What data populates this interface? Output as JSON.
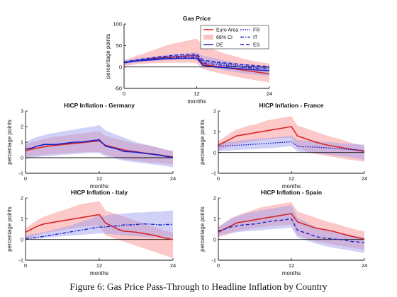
{
  "figure": {
    "caption": "Figure 6: Gas Price Pass-Through to Headline Inflation by Country"
  },
  "chart_data": [
    {
      "type": "line",
      "title": "Gas Price",
      "xlabel": "months",
      "ylabel": "percentage points",
      "xlim": [
        0,
        24
      ],
      "ylim": [
        -50,
        100
      ],
      "xticks": [
        "0",
        "12",
        "24"
      ],
      "yticks": [
        "-50",
        "0",
        "50",
        "100"
      ],
      "zero_line": true,
      "legend": {
        "placement": "top-right",
        "entries": [
          "Euro Area",
          "68% CI",
          "DE",
          "FR",
          "IT",
          "ES"
        ]
      },
      "x": [
        0,
        1,
        2,
        3,
        4,
        5,
        6,
        7,
        8,
        9,
        10,
        11,
        12,
        13,
        14,
        15,
        16,
        17,
        18,
        19,
        20,
        21,
        22,
        23,
        24
      ],
      "band_euro_area": {
        "name": "68% CI",
        "lower": [
          2,
          4,
          6,
          7,
          8,
          9,
          9,
          10,
          10,
          10,
          10,
          10,
          8,
          -4,
          -8,
          -12,
          -16,
          -18,
          -22,
          -24,
          -27,
          -29,
          -32,
          -34,
          -36
        ],
        "upper": [
          16,
          20,
          26,
          30,
          35,
          40,
          45,
          50,
          54,
          57,
          60,
          63,
          66,
          50,
          45,
          40,
          34,
          30,
          26,
          22,
          18,
          15,
          12,
          10,
          8
        ]
      },
      "band_country": {
        "lower": [
          5,
          8,
          10,
          12,
          13,
          14,
          15,
          16,
          17,
          17,
          18,
          18,
          17,
          5,
          0,
          -3,
          -6,
          -9,
          -11,
          -13,
          -15,
          -17,
          -18,
          -20,
          -22
        ],
        "upper": [
          15,
          18,
          20,
          22,
          23,
          24,
          26,
          28,
          29,
          30,
          31,
          32,
          33,
          26,
          23,
          20,
          17,
          14,
          11,
          8,
          6,
          4,
          2,
          1,
          0
        ]
      },
      "series": [
        {
          "name": "Euro Area",
          "color": "#d62728",
          "values": [
            10,
            12,
            14,
            16,
            18,
            20,
            21,
            22,
            23,
            24,
            25,
            26,
            26,
            8,
            4,
            2,
            0,
            -2,
            -4,
            -6,
            -8,
            -10,
            -12,
            -14,
            -16
          ]
        },
        {
          "name": "DE",
          "color": "#1a22c9",
          "values": [
            10,
            12,
            14,
            15,
            16,
            17,
            18,
            19,
            19,
            20,
            20,
            20,
            20,
            4,
            2,
            0,
            -1,
            -2,
            -3,
            -4,
            -5,
            -6,
            -7,
            -8,
            -9
          ]
        },
        {
          "name": "FR",
          "color": "#1a22c9",
          "values": [
            11,
            13,
            15,
            17,
            19,
            20,
            22,
            23,
            24,
            25,
            26,
            26,
            26,
            14,
            12,
            10,
            8,
            6,
            5,
            3,
            2,
            1,
            0,
            -1,
            -2
          ]
        },
        {
          "name": "IT",
          "color": "#1a22c9",
          "values": [
            10,
            12,
            14,
            16,
            17,
            18,
            19,
            20,
            21,
            22,
            22,
            22,
            22,
            10,
            8,
            6,
            4,
            3,
            2,
            0,
            -1,
            -2,
            -3,
            -4,
            -5
          ]
        },
        {
          "name": "ES",
          "color": "#1a22c9",
          "values": [
            11,
            14,
            16,
            18,
            20,
            22,
            24,
            25,
            27,
            28,
            29,
            30,
            30,
            16,
            14,
            12,
            10,
            9,
            8,
            6,
            5,
            4,
            3,
            2,
            1
          ]
        }
      ]
    },
    {
      "type": "line",
      "title": "HICP Inflation - Germany",
      "xlabel": "months",
      "ylabel": "percentage points",
      "xlim": [
        0,
        24
      ],
      "ylim": [
        -1,
        3
      ],
      "xticks": [
        "0",
        "12",
        "24"
      ],
      "yticks": [
        "-1",
        "0",
        "1",
        "2",
        "3"
      ],
      "zero_line": true,
      "x": [
        0,
        1,
        2,
        3,
        4,
        5,
        6,
        7,
        8,
        9,
        10,
        11,
        12,
        13,
        14,
        15,
        16,
        17,
        18,
        19,
        20,
        21,
        22,
        23,
        24
      ],
      "band_euro_area": {
        "lower": [
          0.05,
          0.1,
          0.15,
          0.2,
          0.22,
          0.25,
          0.27,
          0.3,
          0.32,
          0.34,
          0.35,
          0.36,
          0.37,
          0.2,
          0.1,
          0.0,
          -0.1,
          -0.15,
          -0.2,
          -0.25,
          -0.3,
          -0.33,
          -0.36,
          -0.4,
          -0.42
        ],
        "upper": [
          0.85,
          1.0,
          1.1,
          1.2,
          1.3,
          1.35,
          1.4,
          1.45,
          1.5,
          1.55,
          1.6,
          1.65,
          1.7,
          1.4,
          1.3,
          1.2,
          1.1,
          1.0,
          0.9,
          0.85,
          0.8,
          0.7,
          0.6,
          0.5,
          0.45
        ]
      },
      "band_country": {
        "lower": [
          -0.1,
          0.0,
          0.05,
          0.1,
          0.1,
          0.15,
          0.2,
          0.2,
          0.25,
          0.25,
          0.3,
          0.3,
          0.3,
          0.1,
          0.0,
          -0.1,
          -0.2,
          -0.25,
          -0.3,
          -0.35,
          -0.4,
          -0.45,
          -0.5,
          -0.55,
          -0.6
        ],
        "upper": [
          1.0,
          1.2,
          1.35,
          1.45,
          1.55,
          1.6,
          1.7,
          1.75,
          1.8,
          1.9,
          1.95,
          2.0,
          2.1,
          1.75,
          1.6,
          1.45,
          1.3,
          1.15,
          1.0,
          0.9,
          0.8,
          0.7,
          0.6,
          0.5,
          0.4
        ]
      },
      "series": [
        {
          "name": "Euro Area",
          "color": "#d62728",
          "values": [
            0.45,
            0.55,
            0.62,
            0.7,
            0.76,
            0.8,
            0.84,
            0.88,
            0.92,
            0.96,
            1.0,
            1.04,
            1.08,
            0.8,
            0.7,
            0.6,
            0.5,
            0.43,
            0.38,
            0.32,
            0.27,
            0.22,
            0.17,
            0.1,
            0.05
          ]
        },
        {
          "name": "DE",
          "color": "#1a22c9",
          "values": [
            0.55,
            0.62,
            0.75,
            0.85,
            0.85,
            0.85,
            0.9,
            0.95,
            1.0,
            1.0,
            1.05,
            1.1,
            1.15,
            0.75,
            0.65,
            0.55,
            0.4,
            0.38,
            0.35,
            0.3,
            0.25,
            0.2,
            0.15,
            0.08,
            0.0
          ]
        }
      ]
    },
    {
      "type": "line",
      "title": "HICP Inflation - France",
      "xlabel": "months",
      "ylabel": "percentage points",
      "xlim": [
        0,
        24
      ],
      "ylim": [
        -1,
        2
      ],
      "xticks": [
        "0",
        "12",
        "24"
      ],
      "yticks": [
        "-1",
        "0",
        "1",
        "2"
      ],
      "zero_line": true,
      "x": [
        0,
        1,
        2,
        3,
        4,
        5,
        6,
        7,
        8,
        9,
        10,
        11,
        12,
        13,
        14,
        15,
        16,
        17,
        18,
        19,
        20,
        21,
        22,
        23,
        24
      ],
      "band_euro_area": {
        "lower": [
          0.1,
          0.2,
          0.3,
          0.4,
          0.45,
          0.5,
          0.55,
          0.6,
          0.62,
          0.65,
          0.68,
          0.7,
          0.72,
          0.2,
          0.1,
          0.0,
          -0.08,
          -0.12,
          -0.18,
          -0.22,
          -0.28,
          -0.32,
          -0.36,
          -0.4,
          -0.45
        ],
        "upper": [
          0.55,
          0.75,
          0.95,
          1.1,
          1.2,
          1.3,
          1.35,
          1.45,
          1.55,
          1.6,
          1.65,
          1.7,
          1.75,
          1.3,
          1.2,
          1.1,
          1.0,
          0.9,
          0.8,
          0.72,
          0.65,
          0.55,
          0.45,
          0.38,
          0.3
        ]
      },
      "band_country": {
        "lower": [
          0.05,
          0.08,
          0.1,
          0.12,
          0.14,
          0.15,
          0.16,
          0.18,
          0.2,
          0.22,
          0.25,
          0.27,
          0.3,
          0.05,
          0.0,
          -0.02,
          -0.05,
          -0.08,
          -0.1,
          -0.14,
          -0.18,
          -0.2,
          -0.25,
          -0.3,
          -0.35
        ],
        "upper": [
          0.45,
          0.5,
          0.52,
          0.55,
          0.6,
          0.62,
          0.65,
          0.68,
          0.7,
          0.72,
          0.75,
          0.78,
          0.8,
          0.6,
          0.58,
          0.56,
          0.55,
          0.52,
          0.5,
          0.48,
          0.45,
          0.43,
          0.42,
          0.4,
          0.38
        ]
      },
      "series": [
        {
          "name": "Euro Area",
          "color": "#d62728",
          "values": [
            0.35,
            0.5,
            0.65,
            0.8,
            0.85,
            0.9,
            0.95,
            1.0,
            1.05,
            1.1,
            1.15,
            1.2,
            1.25,
            0.8,
            0.7,
            0.6,
            0.5,
            0.42,
            0.35,
            0.3,
            0.25,
            0.2,
            0.15,
            0.1,
            0.05
          ]
        },
        {
          "name": "FR",
          "color": "#1a22c9",
          "values": [
            0.3,
            0.32,
            0.33,
            0.35,
            0.36,
            0.38,
            0.4,
            0.42,
            0.44,
            0.46,
            0.48,
            0.5,
            0.52,
            0.3,
            0.28,
            0.27,
            0.26,
            0.24,
            0.22,
            0.2,
            0.18,
            0.16,
            0.14,
            0.12,
            0.1
          ]
        }
      ]
    },
    {
      "type": "line",
      "title": "HICP Inflation - Italy",
      "xlabel": "months",
      "ylabel": "percentage points",
      "xlim": [
        0,
        24
      ],
      "ylim": [
        -1,
        2
      ],
      "xticks": [
        "0",
        "12",
        "24"
      ],
      "yticks": [
        "-1",
        "0",
        "1",
        "2"
      ],
      "zero_line": true,
      "x": [
        0,
        1,
        2,
        3,
        4,
        5,
        6,
        7,
        8,
        9,
        10,
        11,
        12,
        13,
        14,
        15,
        16,
        17,
        18,
        19,
        20,
        21,
        22,
        23,
        24
      ],
      "band_euro_area": {
        "lower": [
          0.05,
          0.1,
          0.2,
          0.3,
          0.35,
          0.4,
          0.45,
          0.5,
          0.55,
          0.6,
          0.62,
          0.65,
          0.68,
          0.2,
          0.1,
          0.0,
          -0.1,
          -0.2,
          -0.3,
          -0.4,
          -0.5,
          -0.6,
          -0.7,
          -0.8,
          -0.9
        ],
        "upper": [
          0.55,
          0.75,
          0.95,
          1.1,
          1.2,
          1.3,
          1.4,
          1.5,
          1.6,
          1.7,
          1.75,
          1.8,
          1.85,
          1.4,
          1.3,
          1.2,
          1.1,
          1.0,
          0.9,
          0.8,
          0.7,
          0.6,
          0.5,
          0.4,
          0.35
        ]
      },
      "band_country": {
        "lower": [
          0.0,
          0.02,
          0.05,
          0.08,
          0.1,
          0.12,
          0.15,
          0.18,
          0.2,
          0.22,
          0.25,
          0.27,
          0.3,
          0.28,
          0.25,
          0.22,
          0.2,
          0.18,
          0.16,
          0.14,
          0.12,
          0.1,
          0.08,
          0.06,
          0.05
        ],
        "upper": [
          0.2,
          0.25,
          0.3,
          0.35,
          0.42,
          0.5,
          0.58,
          0.65,
          0.75,
          0.85,
          0.95,
          1.05,
          1.15,
          1.15,
          1.2,
          1.22,
          1.25,
          1.28,
          1.3,
          1.3,
          1.32,
          1.35,
          1.35,
          1.38,
          1.4
        ]
      },
      "series": [
        {
          "name": "Euro Area",
          "color": "#d62728",
          "values": [
            0.35,
            0.5,
            0.65,
            0.75,
            0.8,
            0.85,
            0.9,
            0.95,
            1.0,
            1.05,
            1.1,
            1.15,
            1.2,
            0.8,
            0.65,
            0.5,
            0.4,
            0.38,
            0.35,
            0.3,
            0.25,
            0.2,
            0.12,
            0.05,
            0.0
          ]
        },
        {
          "name": "IT",
          "color": "#1a22c9",
          "values": [
            0.05,
            0.07,
            0.1,
            0.15,
            0.2,
            0.25,
            0.3,
            0.35,
            0.4,
            0.45,
            0.5,
            0.55,
            0.6,
            0.6,
            0.65,
            0.65,
            0.7,
            0.7,
            0.72,
            0.75,
            0.75,
            0.72,
            0.7,
            0.72,
            0.72
          ]
        }
      ]
    },
    {
      "type": "line",
      "title": "HICP Inflation - Spain",
      "xlabel": "months",
      "ylabel": "percentage points",
      "xlim": [
        0,
        24
      ],
      "ylim": [
        -1,
        2
      ],
      "xticks": [
        "0",
        "12",
        "24"
      ],
      "yticks": [
        "-1",
        "0",
        "1",
        "2"
      ],
      "zero_line": true,
      "x": [
        0,
        1,
        2,
        3,
        4,
        5,
        6,
        7,
        8,
        9,
        10,
        11,
        12,
        13,
        14,
        15,
        16,
        17,
        18,
        19,
        20,
        21,
        22,
        23,
        24
      ],
      "band_euro_area": {
        "lower": [
          0.1,
          0.2,
          0.3,
          0.4,
          0.45,
          0.5,
          0.55,
          0.6,
          0.62,
          0.65,
          0.68,
          0.7,
          0.72,
          0.2,
          0.1,
          0.0,
          -0.1,
          -0.15,
          -0.2,
          -0.25,
          -0.3,
          -0.35,
          -0.4,
          -0.45,
          -0.5
        ],
        "upper": [
          0.6,
          0.8,
          1.0,
          1.15,
          1.25,
          1.35,
          1.45,
          1.55,
          1.6,
          1.65,
          1.7,
          1.75,
          1.8,
          1.35,
          1.25,
          1.15,
          1.05,
          0.95,
          0.85,
          0.78,
          0.7,
          0.6,
          0.52,
          0.45,
          0.4
        ]
      },
      "band_country": {
        "lower": [
          0.2,
          0.25,
          0.3,
          0.35,
          0.38,
          0.4,
          0.42,
          0.45,
          0.48,
          0.5,
          0.52,
          0.55,
          0.58,
          0.1,
          0.0,
          -0.1,
          -0.2,
          -0.28,
          -0.35,
          -0.4,
          -0.45,
          -0.5,
          -0.55,
          -0.6,
          -0.65
        ],
        "upper": [
          0.6,
          0.8,
          1.0,
          1.1,
          1.2,
          1.3,
          1.35,
          1.4,
          1.45,
          1.5,
          1.55,
          1.6,
          1.65,
          1.05,
          0.9,
          0.75,
          0.6,
          0.5,
          0.42,
          0.35,
          0.3,
          0.25,
          0.2,
          0.15,
          0.1
        ]
      },
      "series": [
        {
          "name": "Euro Area",
          "color": "#d62728",
          "values": [
            0.35,
            0.5,
            0.65,
            0.8,
            0.85,
            0.9,
            0.95,
            1.0,
            1.05,
            1.1,
            1.15,
            1.2,
            1.25,
            0.85,
            0.75,
            0.65,
            0.55,
            0.5,
            0.45,
            0.38,
            0.3,
            0.22,
            0.15,
            0.08,
            0.02
          ]
        },
        {
          "name": "ES",
          "color": "#1a22c9",
          "values": [
            0.4,
            0.5,
            0.6,
            0.65,
            0.7,
            0.72,
            0.75,
            0.8,
            0.85,
            0.9,
            0.92,
            0.95,
            1.0,
            0.45,
            0.35,
            0.25,
            0.15,
            0.08,
            0.05,
            0.02,
            0.0,
            -0.05,
            -0.1,
            -0.12,
            -0.15
          ]
        }
      ]
    }
  ],
  "style": {
    "band_euro_area_color": "#fa9a9a",
    "band_country_color": "#9a9af0",
    "axis_color": "#111111",
    "zero_line_color": "#111111"
  }
}
